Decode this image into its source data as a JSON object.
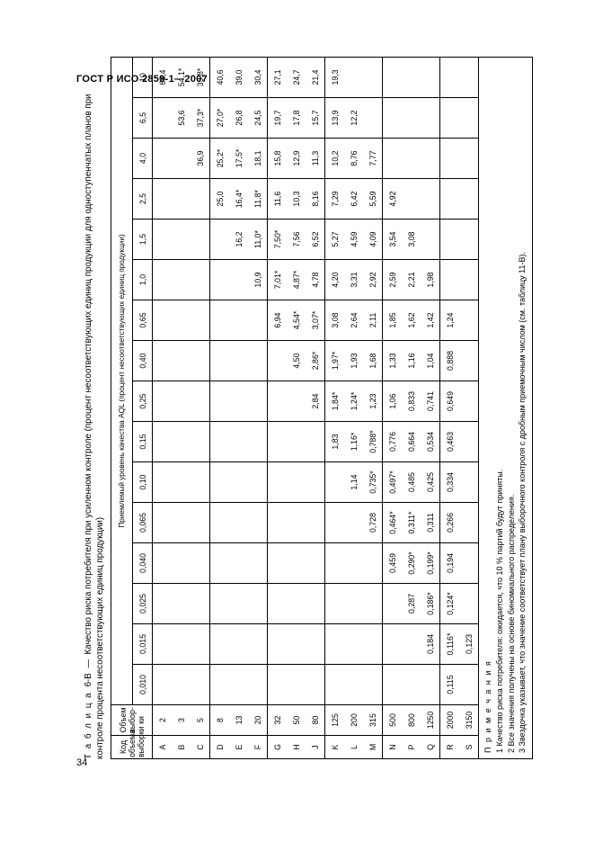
{
  "doc_header": "ГОСТ Р ИСО 2859-1—2007",
  "page_number": "34",
  "caption_prefix": "Т а б л и ц а",
  "caption_num": "6-B",
  "caption_dash": "—",
  "caption_text": "Качество риска потребителя при усиленном контроле (процент несоответствующих единиц продукции для одноступенчатых планов при контроле процента несоответствующих единиц продукции)",
  "hdr_code": "Код объема выборки",
  "hdr_size": "Объем выбор-ки",
  "hdr_aql": "Приемлемый уровень качества AQL (процент несоответствующих единиц продукции)",
  "aql_cols": [
    "0,010",
    "0,015",
    "0,025",
    "0,040",
    "0,065",
    "0,10",
    "0,15",
    "0,25",
    "0,40",
    "0,65",
    "1,0",
    "1,5",
    "2,5",
    "4,0",
    "6,5",
    "10"
  ],
  "groups": [
    [
      {
        "code": "A",
        "size": "2",
        "v": [
          "",
          "",
          "",
          "",
          "",
          "",
          "",
          "",
          "",
          "",
          "",
          "",
          "",
          "",
          "",
          "68,4"
        ]
      },
      {
        "code": "B",
        "size": "3",
        "v": [
          "",
          "",
          "",
          "",
          "",
          "",
          "",
          "",
          "",
          "",
          "",
          "",
          "",
          "",
          "53,6",
          "54,1*"
        ]
      },
      {
        "code": "C",
        "size": "5",
        "v": [
          "",
          "",
          "",
          "",
          "",
          "",
          "",
          "",
          "",
          "",
          "",
          "",
          "",
          "36,9",
          "37,3*",
          "39,8*"
        ]
      }
    ],
    [
      {
        "code": "D",
        "size": "8",
        "v": [
          "",
          "",
          "",
          "",
          "",
          "",
          "",
          "",
          "",
          "",
          "",
          "",
          "25,0",
          "25,2*",
          "27,0*",
          "40,6"
        ]
      },
      {
        "code": "E",
        "size": "13",
        "v": [
          "",
          "",
          "",
          "",
          "",
          "",
          "",
          "",
          "",
          "",
          "",
          "16,2",
          "16,4*",
          "17,5*",
          "26,8",
          "39,0"
        ]
      },
      {
        "code": "F",
        "size": "20",
        "v": [
          "",
          "",
          "",
          "",
          "",
          "",
          "",
          "",
          "",
          "",
          "10,9",
          "11,0*",
          "11,8*",
          "18,1",
          "24,5",
          "30,4"
        ]
      }
    ],
    [
      {
        "code": "G",
        "size": "32",
        "v": [
          "",
          "",
          "",
          "",
          "",
          "",
          "",
          "",
          "",
          "6,94",
          "7,01*",
          "7,50*",
          "11,6",
          "15,8",
          "19,7",
          "27,1"
        ]
      },
      {
        "code": "H",
        "size": "50",
        "v": [
          "",
          "",
          "",
          "",
          "",
          "",
          "",
          "",
          "4,50",
          "4,54*",
          "4,87*",
          "7,56",
          "10,3",
          "12,9",
          "17,8",
          "24,7"
        ]
      },
      {
        "code": "J",
        "size": "80",
        "v": [
          "",
          "",
          "",
          "",
          "",
          "",
          "",
          "2,84",
          "2,86*",
          "3,07*",
          "4,78",
          "6,52",
          "8,16",
          "11,3",
          "15,7",
          "21,4"
        ]
      }
    ],
    [
      {
        "code": "K",
        "size": "125",
        "v": [
          "",
          "",
          "",
          "",
          "",
          "",
          "1,83",
          "1,84*",
          "1,97*",
          "3,08",
          "4,20",
          "5,27",
          "7,29",
          "10,2",
          "13,9",
          "19,3"
        ]
      },
      {
        "code": "L",
        "size": "200",
        "v": [
          "",
          "",
          "",
          "",
          "",
          "1,14",
          "1,16*",
          "1,24*",
          "1,93",
          "2,64",
          "3,31",
          "4,59",
          "6,42",
          "8,76",
          "12,2",
          ""
        ]
      },
      {
        "code": "M",
        "size": "315",
        "v": [
          "",
          "",
          "",
          "",
          "0,728",
          "0,735*",
          "0,788*",
          "1,23",
          "1,68",
          "2,11",
          "2,92",
          "4,09",
          "5,59",
          "7,77",
          "",
          ""
        ]
      }
    ],
    [
      {
        "code": "N",
        "size": "500",
        "v": [
          "",
          "",
          "",
          "0,459",
          "0,464*",
          "0,497*",
          "0,776",
          "1,06",
          "1,33",
          "1,85",
          "2,59",
          "3,54",
          "4,92",
          "",
          "",
          ""
        ]
      },
      {
        "code": "P",
        "size": "800",
        "v": [
          "",
          "",
          "0,287",
          "0,290*",
          "0,311*",
          "0,485",
          "0,664",
          "0,833",
          "1,16",
          "1,62",
          "2,21",
          "3,08",
          "",
          "",
          "",
          ""
        ]
      },
      {
        "code": "Q",
        "size": "1250",
        "v": [
          "",
          "0,184",
          "0,186*",
          "0,199*",
          "0,311",
          "0,425",
          "0,534",
          "0,741",
          "1,04",
          "1,42",
          "1,98",
          "",
          "",
          "",
          "",
          ""
        ]
      }
    ],
    [
      {
        "code": "R",
        "size": "2000",
        "v": [
          "0,115",
          "0,116*",
          "0,124*",
          "0,194",
          "0,266",
          "0,334",
          "0,463",
          "0,649",
          "0,888",
          "1,24",
          "",
          "",
          "",
          "",
          "",
          ""
        ]
      },
      {
        "code": "S",
        "size": "3150",
        "v": [
          "",
          "0,123",
          "",
          "",
          "",
          "",
          "",
          "",
          "",
          "",
          "",
          "",
          "",
          "",
          "",
          ""
        ]
      }
    ]
  ],
  "notes_title": "П р и м е ч а н и я",
  "notes": [
    "1 Качество риска потребителя: ожидается, что 10 % партий будут приняты.",
    "2 Все значения получены на основе биномиального распределения.",
    "3 Звездочка указывает, что значение соответствует плану выборочного контроля с дробным приемочным числом (см. таблицу 11-B)."
  ]
}
